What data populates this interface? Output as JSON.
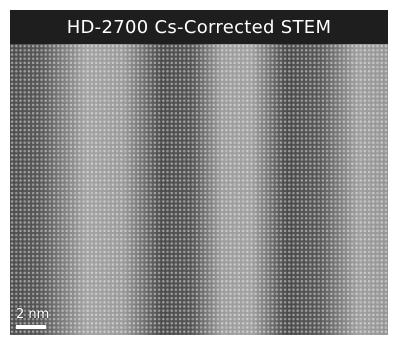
{
  "title": "HD-2700 Cs-Corrected STEM",
  "scale_bar": {
    "label": "2 nm"
  },
  "colors": {
    "title_background": "#1e1e1e",
    "title_text": "#ffffff",
    "bright_band": "#c8c8c8",
    "dark_band": "#5a5a5a"
  }
}
